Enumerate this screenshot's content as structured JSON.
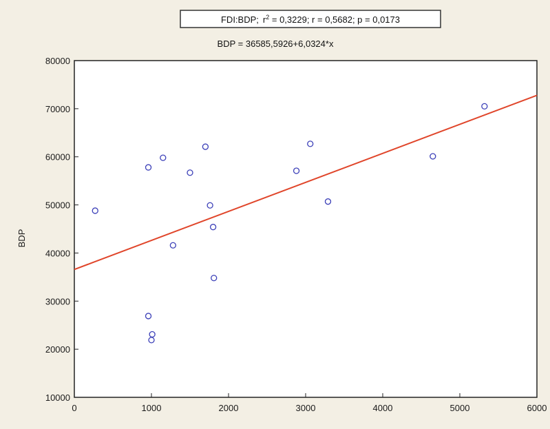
{
  "chart_data": {
    "type": "scatter",
    "title_box": {
      "label": "FDI:BDP;",
      "r2_prefix": "r",
      "r2_sup": "2",
      "r2_value": " = 0,3229;  r = 0,5682; p = 0,0173"
    },
    "subtitle": "BDP = 36585,5926+6,0324*x",
    "xlabel": "",
    "ylabel": "BDP",
    "xlim": [
      0,
      6000
    ],
    "ylim": [
      10000,
      80000
    ],
    "x_ticks": [
      0,
      1000,
      2000,
      3000,
      4000,
      5000,
      6000
    ],
    "y_ticks": [
      10000,
      20000,
      30000,
      40000,
      50000,
      60000,
      70000,
      80000
    ],
    "points": [
      {
        "x": 270,
        "y": 48800
      },
      {
        "x": 960,
        "y": 57800
      },
      {
        "x": 960,
        "y": 26900
      },
      {
        "x": 1010,
        "y": 23100
      },
      {
        "x": 1000,
        "y": 21900
      },
      {
        "x": 1150,
        "y": 59800
      },
      {
        "x": 1280,
        "y": 41600
      },
      {
        "x": 1500,
        "y": 56700
      },
      {
        "x": 1700,
        "y": 62100
      },
      {
        "x": 1760,
        "y": 49900
      },
      {
        "x": 1800,
        "y": 45400
      },
      {
        "x": 1810,
        "y": 34800
      },
      {
        "x": 2880,
        "y": 57100
      },
      {
        "x": 3060,
        "y": 62700
      },
      {
        "x": 3290,
        "y": 50700
      },
      {
        "x": 4650,
        "y": 60100
      },
      {
        "x": 5320,
        "y": 70500
      }
    ],
    "regression": {
      "intercept": 36585.5926,
      "slope": 6.0324
    },
    "colors": {
      "background": "#f3efe4",
      "plot_area": "#ffffff",
      "point": "#3b3fb8",
      "line": "#e0452a",
      "axis": "#222222"
    },
    "grid": false
  }
}
